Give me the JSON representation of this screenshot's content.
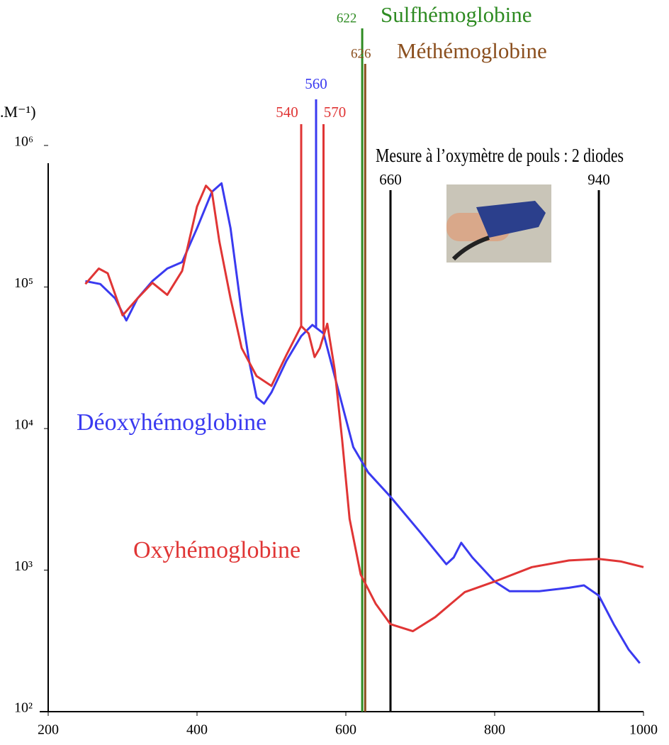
{
  "chart_data": {
    "type": "line",
    "y_label": ".M⁻¹)",
    "log_y": true,
    "xlim": [
      200,
      1000
    ],
    "xticks": [
      200,
      400,
      600,
      800,
      1000
    ],
    "ylim": [
      100,
      1000000
    ],
    "yticks": [
      {
        "value": 100,
        "label": "10²"
      },
      {
        "value": 1000,
        "label": "10³"
      },
      {
        "value": 10000,
        "label": "10⁴"
      },
      {
        "value": 100000,
        "label": "10⁵"
      },
      {
        "value": 1000000,
        "label": "10⁶"
      }
    ],
    "series": [
      {
        "name": "Déoxyhémoglobine",
        "color": "#3a3af0",
        "x": [
          250,
          270,
          290,
          305,
          320,
          340,
          360,
          380,
          400,
          420,
          433,
          445,
          460,
          470,
          480,
          490,
          500,
          520,
          540,
          555,
          570,
          590,
          610,
          630,
          660,
          700,
          735,
          745,
          755,
          770,
          800,
          820,
          860,
          900,
          920,
          940,
          960,
          980,
          995
        ],
        "values": [
          110000,
          105000,
          83000,
          58000,
          83000,
          110000,
          135000,
          150000,
          260000,
          470000,
          540000,
          260000,
          66000,
          30000,
          16600,
          15000,
          18000,
          30000,
          45000,
          54000,
          47000,
          18600,
          7400,
          4900,
          3300,
          1850,
          1100,
          1230,
          1560,
          1230,
          830,
          710,
          710,
          750,
          780,
          660,
          415,
          275,
          220
        ]
      },
      {
        "name": "Oxyhémoglobine",
        "color": "#e03535",
        "x": [
          250,
          268,
          280,
          300,
          320,
          340,
          360,
          380,
          400,
          412,
          420,
          430,
          445,
          460,
          480,
          500,
          520,
          540,
          550,
          558,
          565,
          575,
          585,
          595,
          605,
          620,
          640,
          660,
          690,
          720,
          760,
          800,
          850,
          900,
          940,
          970,
          1000
        ],
        "values": [
          105000,
          135000,
          125000,
          63000,
          83000,
          107000,
          88000,
          130000,
          370000,
          520000,
          470000,
          210000,
          83000,
          37000,
          23500,
          20000,
          33000,
          53000,
          47000,
          32000,
          37000,
          55000,
          26000,
          8300,
          2300,
          930,
          580,
          415,
          370,
          465,
          700,
          830,
          1050,
          1170,
          1200,
          1150,
          1050
        ]
      }
    ],
    "annotations": [
      {
        "x": 540,
        "label": "540",
        "color": "#e03535"
      },
      {
        "x": 560,
        "label": "560",
        "color": "#3a3af0"
      },
      {
        "x": 570,
        "label": "570",
        "color": "#e03535"
      },
      {
        "x": 622,
        "label": "622",
        "name": "Sulfhémoglobine",
        "color": "#2e8b22"
      },
      {
        "x": 626,
        "label": "626",
        "name": "Méthémoglobine",
        "color": "#8b4f1e"
      },
      {
        "x": 660,
        "label": "660",
        "color": "#000000"
      },
      {
        "x": 940,
        "label": "940",
        "color": "#000000"
      }
    ],
    "oximeter_caption": "Mesure à l’oxymètre de pouls : 2 diodes"
  }
}
